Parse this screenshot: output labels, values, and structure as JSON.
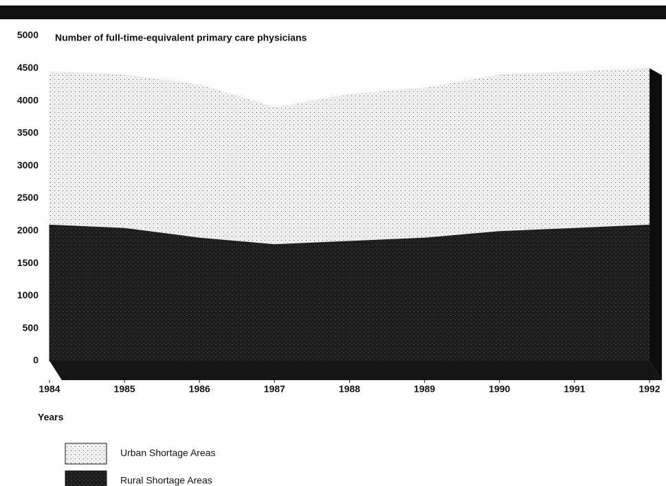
{
  "chart_data": {
    "type": "area",
    "title": "Number of full-time-equivalent primary care physicians",
    "x_label": "Years",
    "x": [
      1984,
      1985,
      1986,
      1987,
      1988,
      1989,
      1990,
      1991,
      1992
    ],
    "xlim": [
      1984,
      1992
    ],
    "xticks": [
      1984,
      1985,
      1986,
      1987,
      1988,
      1989,
      1990,
      1991,
      1992
    ],
    "ylim": [
      0,
      5000
    ],
    "yticks": [
      0,
      500,
      1000,
      1500,
      2000,
      2500,
      3000,
      3500,
      4000,
      4500,
      5000
    ],
    "stacked": true,
    "series": [
      {
        "name": "Rural Shortage Areas",
        "color": "#1c1c1c",
        "values": [
          2100,
          2050,
          1900,
          1800,
          1850,
          1900,
          2000,
          2050,
          2100
        ]
      },
      {
        "name": "Urban Shortage Areas",
        "color": "#ececec",
        "values": [
          2350,
          2350,
          2350,
          2100,
          2250,
          2300,
          2400,
          2400,
          2400
        ]
      }
    ]
  }
}
